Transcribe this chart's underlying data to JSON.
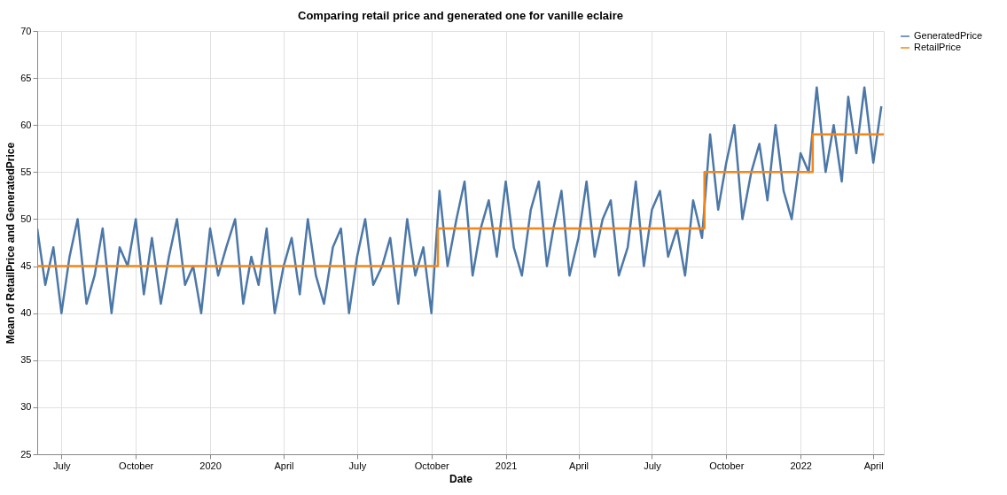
{
  "chart_data": {
    "type": "line",
    "title": "Comparing retail price and generated one for vanille eclaire",
    "xlabel": "Date",
    "ylabel": "Mean of RetailPrice and GeneratedPrice",
    "xlim": [
      "2019-06-01",
      "2022-04-14"
    ],
    "xticks": [
      {
        "value": "2019-07-01",
        "label": "July"
      },
      {
        "value": "2019-10-01",
        "label": "October"
      },
      {
        "value": "2020-01-01",
        "label": "2020"
      },
      {
        "value": "2020-04-01",
        "label": "April"
      },
      {
        "value": "2020-07-01",
        "label": "July"
      },
      {
        "value": "2020-10-01",
        "label": "October"
      },
      {
        "value": "2021-01-01",
        "label": "2021"
      },
      {
        "value": "2021-04-01",
        "label": "April"
      },
      {
        "value": "2021-07-01",
        "label": "July"
      },
      {
        "value": "2021-10-01",
        "label": "October"
      },
      {
        "value": "2022-01-01",
        "label": "2022"
      },
      {
        "value": "2022-04-01",
        "label": "April"
      }
    ],
    "ylim": [
      25,
      70
    ],
    "yticks": [
      25,
      30,
      35,
      40,
      45,
      50,
      55,
      60,
      65,
      70
    ],
    "grid": true,
    "legend": "top right",
    "series": [
      {
        "name": "GeneratedPrice",
        "type": "line",
        "color": "#4c78a8",
        "x": [
          "2019-06-01",
          "2019-06-11",
          "2019-06-21",
          "2019-07-01",
          "2019-07-11",
          "2019-07-21",
          "2019-08-01",
          "2019-08-11",
          "2019-08-21",
          "2019-09-01",
          "2019-09-11",
          "2019-09-21",
          "2019-10-01",
          "2019-10-11",
          "2019-10-21",
          "2019-11-01",
          "2019-11-11",
          "2019-11-21",
          "2019-12-01",
          "2019-12-11",
          "2019-12-21",
          "2020-01-01",
          "2020-01-11",
          "2020-01-21",
          "2020-02-01",
          "2020-02-11",
          "2020-02-21",
          "2020-03-01",
          "2020-03-11",
          "2020-03-21",
          "2020-04-01",
          "2020-04-11",
          "2020-04-21",
          "2020-05-01",
          "2020-05-11",
          "2020-05-21",
          "2020-06-01",
          "2020-06-11",
          "2020-06-21",
          "2020-07-01",
          "2020-07-11",
          "2020-07-21",
          "2020-08-01",
          "2020-08-11",
          "2020-08-21",
          "2020-09-01",
          "2020-09-11",
          "2020-09-21",
          "2020-10-01",
          "2020-10-11",
          "2020-10-21",
          "2020-11-01",
          "2020-11-11",
          "2020-11-21",
          "2020-12-01",
          "2020-12-11",
          "2020-12-21",
          "2021-01-01",
          "2021-01-11",
          "2021-01-21",
          "2021-02-01",
          "2021-02-11",
          "2021-02-21",
          "2021-03-01",
          "2021-03-11",
          "2021-03-21",
          "2021-04-01",
          "2021-04-11",
          "2021-04-21",
          "2021-05-01",
          "2021-05-11",
          "2021-05-21",
          "2021-06-01",
          "2021-06-11",
          "2021-06-21",
          "2021-07-01",
          "2021-07-11",
          "2021-07-21",
          "2021-08-01",
          "2021-08-11",
          "2021-08-21",
          "2021-09-01",
          "2021-09-11",
          "2021-09-21",
          "2021-10-01",
          "2021-10-11",
          "2021-10-21",
          "2021-11-01",
          "2021-11-11",
          "2021-11-21",
          "2021-12-01",
          "2021-12-11",
          "2021-12-21",
          "2022-01-01",
          "2022-01-11",
          "2022-01-21",
          "2022-02-01",
          "2022-02-11",
          "2022-02-21",
          "2022-03-01",
          "2022-03-11",
          "2022-03-21",
          "2022-04-01",
          "2022-04-11"
        ],
        "values": [
          49,
          43,
          47,
          40,
          46,
          50,
          41,
          44,
          49,
          40,
          47,
          45,
          50,
          42,
          48,
          41,
          46,
          50,
          43,
          45,
          40,
          49,
          44,
          47,
          50,
          41,
          46,
          43,
          49,
          40,
          45,
          48,
          42,
          50,
          44,
          41,
          47,
          49,
          40,
          46,
          50,
          43,
          45,
          48,
          41,
          50,
          44,
          47,
          40,
          53,
          45,
          50,
          54,
          44,
          49,
          52,
          46,
          54,
          47,
          44,
          51,
          54,
          45,
          49,
          53,
          44,
          48,
          54,
          46,
          50,
          52,
          44,
          47,
          54,
          45,
          51,
          53,
          46,
          49,
          44,
          52,
          48,
          59,
          51,
          56,
          60,
          50,
          55,
          58,
          52,
          60,
          53,
          50,
          57,
          55,
          64,
          55,
          60,
          54,
          63,
          57,
          64,
          56,
          62
        ]
      },
      {
        "name": "RetailPrice",
        "type": "step",
        "color": "#f58518",
        "x": [
          "2019-06-01",
          "2020-10-09",
          "2021-09-04",
          "2022-01-16",
          "2022-04-14"
        ],
        "values": [
          45,
          49,
          55,
          59,
          59
        ]
      }
    ]
  }
}
